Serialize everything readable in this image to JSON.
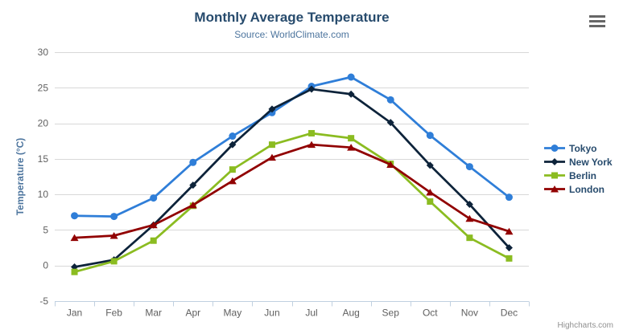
{
  "chart": {
    "credits": "Highcharts.com",
    "context_menu_icon": "hamburger-menu-icon"
  },
  "colors": {
    "title": "#274b6d",
    "subtitle": "#4d759e",
    "axis_title": "#4d759e",
    "tick_label": "#606060",
    "gridline": "#d8d8d8",
    "axis_line": "#c0d0e0",
    "legend_text": "#274b6d",
    "credits_text": "#909090",
    "menu_icon": "#666666"
  },
  "chart_data": {
    "type": "line",
    "title": "Monthly Average Temperature",
    "subtitle": "Source: WorldClimate.com",
    "categories": [
      "Jan",
      "Feb",
      "Mar",
      "Apr",
      "May",
      "Jun",
      "Jul",
      "Aug",
      "Sep",
      "Oct",
      "Nov",
      "Dec"
    ],
    "xlabel": "",
    "ylabel": "Temperature (°C)",
    "ylim": [
      -5,
      30
    ],
    "yticks": [
      -5,
      0,
      5,
      10,
      15,
      20,
      25,
      30
    ],
    "grid": true,
    "legend_position": "right",
    "series": [
      {
        "name": "Tokyo",
        "color": "#2f7ed8",
        "marker": "circle",
        "values": [
          7.0,
          6.9,
          9.5,
          14.5,
          18.2,
          21.5,
          25.2,
          26.5,
          23.3,
          18.3,
          13.9,
          9.6
        ]
      },
      {
        "name": "New York",
        "color": "#0d233a",
        "marker": "diamond",
        "values": [
          -0.2,
          0.8,
          5.7,
          11.3,
          17.0,
          22.0,
          24.8,
          24.1,
          20.1,
          14.1,
          8.6,
          2.5
        ]
      },
      {
        "name": "Berlin",
        "color": "#8bbc21",
        "marker": "square",
        "values": [
          -0.9,
          0.6,
          3.5,
          8.4,
          13.5,
          17.0,
          18.6,
          17.9,
          14.3,
          9.0,
          3.9,
          1.0
        ]
      },
      {
        "name": "London",
        "color": "#910000",
        "marker": "triangle",
        "values": [
          3.9,
          4.2,
          5.7,
          8.5,
          11.9,
          15.2,
          17.0,
          16.6,
          14.2,
          10.3,
          6.6,
          4.8
        ]
      }
    ]
  }
}
